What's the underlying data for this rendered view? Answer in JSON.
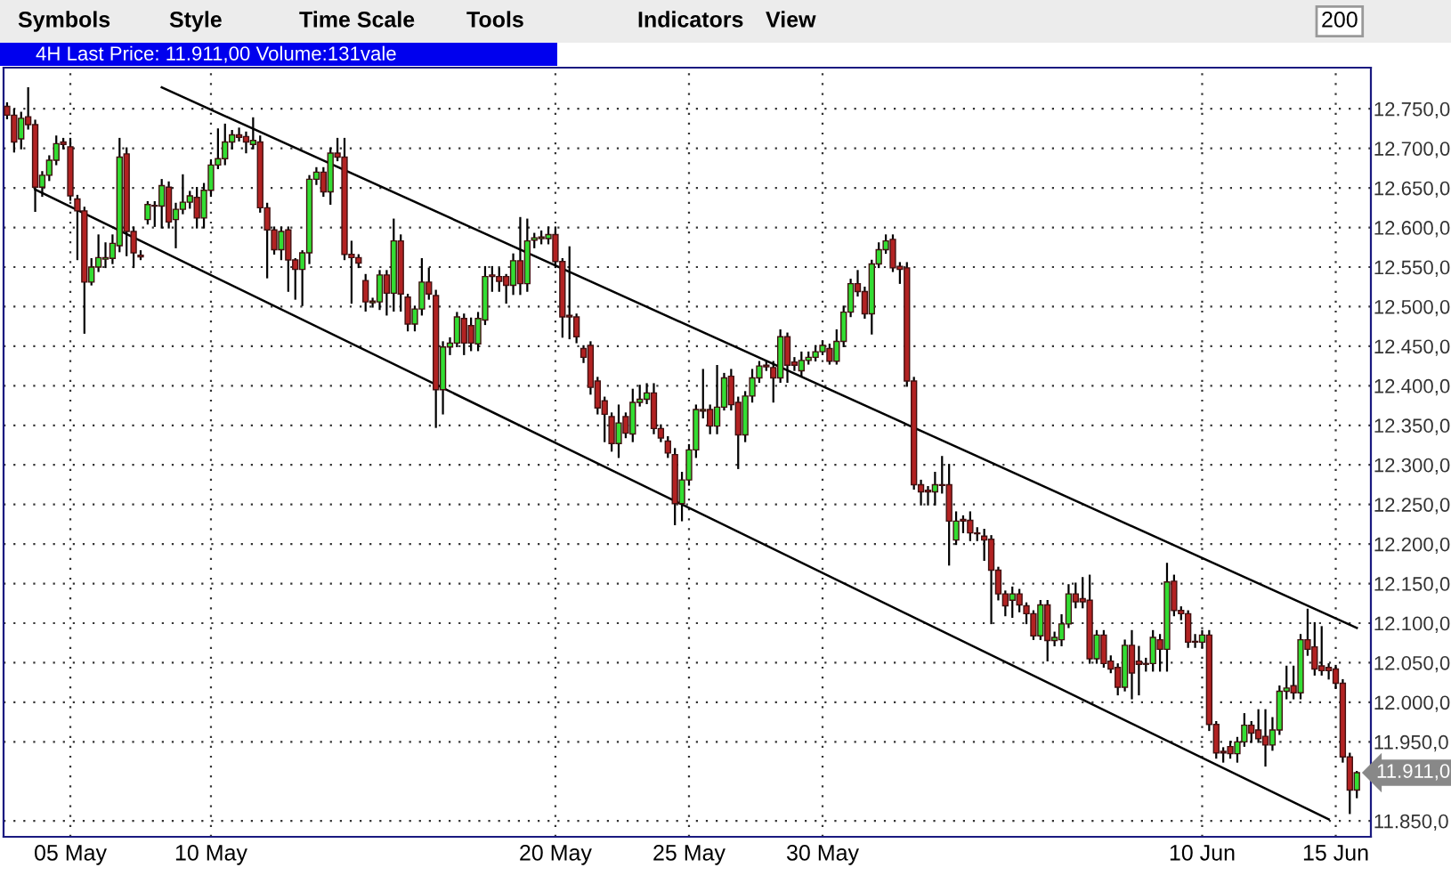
{
  "chart_data": {
    "type": "candlestick",
    "title": "4H Last Price: 11.911,00 Volume:131vale",
    "annotations": [
      "Symbols",
      "Style",
      "Time Scale",
      "Tools",
      "Indicators",
      "View",
      "200",
      "11.911,0"
    ],
    "categories": [
      null,
      null,
      null,
      null,
      null,
      null,
      null,
      null,
      null,
      "05 May",
      null,
      null,
      null,
      null,
      null,
      null,
      null,
      null,
      null,
      null,
      null,
      null,
      null,
      null,
      null,
      null,
      null,
      null,
      null,
      "10 May",
      null,
      null,
      null,
      null,
      null,
      null,
      null,
      null,
      null,
      null,
      null,
      null,
      null,
      null,
      null,
      null,
      null,
      null,
      null,
      null,
      null,
      null,
      null,
      null,
      null,
      null,
      null,
      null,
      null,
      null,
      null,
      null,
      null,
      null,
      null,
      null,
      null,
      null,
      null,
      null,
      null,
      null,
      null,
      null,
      null,
      null,
      null,
      null,
      "20 May",
      null,
      null,
      null,
      null,
      null,
      null,
      null,
      null,
      null,
      null,
      null,
      null,
      null,
      null,
      null,
      null,
      null,
      null,
      "25 May",
      null,
      null,
      null,
      null,
      null,
      null,
      null,
      null,
      null,
      null,
      null,
      null,
      null,
      null,
      null,
      null,
      null,
      null,
      "30 May",
      null,
      null,
      null,
      null,
      null,
      null,
      null,
      null,
      null,
      null,
      null,
      null,
      null,
      null,
      null,
      null,
      null,
      null,
      null,
      null,
      null,
      null,
      null,
      null,
      null,
      null,
      null,
      null,
      null,
      null,
      null,
      null,
      null,
      null,
      null,
      null,
      null,
      null,
      null,
      null,
      null,
      null,
      null,
      null,
      null,
      null,
      null,
      null,
      null,
      null,
      null,
      null,
      null,
      "10 Jun",
      null,
      null,
      null,
      null,
      null,
      null,
      null,
      null,
      null,
      null,
      null,
      null,
      null,
      null,
      null,
      null,
      null,
      null,
      "15 Jun",
      null,
      null,
      null
    ],
    "ohlc": [
      [
        12753,
        12757,
        12738,
        12742
      ],
      [
        12742,
        12749,
        12696,
        12708
      ],
      [
        12712,
        12745,
        12700,
        12738
      ],
      [
        12740,
        12776,
        12725,
        12730
      ],
      [
        12730,
        12735,
        12621,
        12651
      ],
      [
        12651,
        12670,
        12640,
        12666
      ],
      [
        12666,
        12690,
        12660,
        12685
      ],
      [
        12685,
        12715,
        12680,
        12706
      ],
      [
        12708,
        12712,
        12700,
        12705
      ],
      [
        12702,
        12712,
        12635,
        12640
      ],
      [
        12636,
        12640,
        12560,
        12621
      ],
      [
        12621,
        12625,
        12467,
        12531
      ],
      [
        12531,
        12560,
        12528,
        12550
      ],
      [
        12550,
        12590,
        12545,
        12562
      ],
      [
        12560,
        12580,
        12550,
        12562
      ],
      [
        12561,
        12590,
        12555,
        12580
      ],
      [
        12577,
        12712,
        12570,
        12689
      ],
      [
        12693,
        12700,
        12565,
        12595
      ],
      [
        12595,
        12600,
        12550,
        12568
      ],
      [
        12565,
        12570,
        12560,
        12563
      ],
      [
        12610,
        12632,
        12605,
        12629
      ],
      [
        12628,
        12632,
        12602,
        12627
      ],
      [
        12627,
        12660,
        12600,
        12653
      ],
      [
        12651,
        12657,
        12600,
        12607
      ],
      [
        12610,
        12630,
        12575,
        12623
      ],
      [
        12623,
        12666,
        12618,
        12632
      ],
      [
        12632,
        12645,
        12625,
        12640
      ],
      [
        12638,
        12650,
        12600,
        12612
      ],
      [
        12612,
        12655,
        12600,
        12647
      ],
      [
        12647,
        12685,
        12640,
        12679
      ],
      [
        12679,
        12724,
        12675,
        12687
      ],
      [
        12687,
        12730,
        12680,
        12708
      ],
      [
        12708,
        12722,
        12700,
        12717
      ],
      [
        12717,
        12725,
        12710,
        12714
      ],
      [
        12715,
        12720,
        12695,
        12708
      ],
      [
        12705,
        12738,
        12700,
        12710
      ],
      [
        12708,
        12715,
        12620,
        12625
      ],
      [
        12625,
        12630,
        12537,
        12597
      ],
      [
        12597,
        12600,
        12567,
        12572
      ],
      [
        12572,
        12600,
        12560,
        12595
      ],
      [
        12597,
        12600,
        12520,
        12559
      ],
      [
        12559,
        12560,
        12510,
        12547
      ],
      [
        12547,
        12570,
        12502,
        12568
      ],
      [
        12568,
        12665,
        12555,
        12661
      ],
      [
        12661,
        12675,
        12655,
        12670
      ],
      [
        12670,
        12675,
        12640,
        12645
      ],
      [
        12645,
        12700,
        12630,
        12694
      ],
      [
        12694,
        12712,
        12685,
        12689
      ],
      [
        12689,
        12712,
        12560,
        12566
      ],
      [
        12566,
        12582,
        12505,
        12562
      ],
      [
        12562,
        12565,
        12550,
        12555
      ],
      [
        12533,
        12540,
        12495,
        12506
      ],
      [
        12505,
        12510,
        12500,
        12507
      ],
      [
        12506,
        12545,
        12497,
        12540
      ],
      [
        12540,
        12545,
        12490,
        12517
      ],
      [
        12517,
        12610,
        12495,
        12583
      ],
      [
        12583,
        12590,
        12495,
        12516
      ],
      [
        12512,
        12515,
        12470,
        12478
      ],
      [
        12478,
        12500,
        12470,
        12497
      ],
      [
        12497,
        12560,
        12490,
        12531
      ],
      [
        12531,
        12548,
        12510,
        12516
      ],
      [
        12514,
        12520,
        12348,
        12395
      ],
      [
        12395,
        12455,
        12365,
        12449
      ],
      [
        12449,
        12460,
        12440,
        12454
      ],
      [
        12454,
        12492,
        12450,
        12487
      ],
      [
        12485,
        12490,
        12440,
        12454
      ],
      [
        12476,
        12485,
        12445,
        12454
      ],
      [
        12453,
        12492,
        12445,
        12485
      ],
      [
        12483,
        12550,
        12478,
        12538
      ],
      [
        12540,
        12550,
        12520,
        12538
      ],
      [
        12538,
        12548,
        12520,
        12532
      ],
      [
        12538,
        12540,
        12505,
        12527
      ],
      [
        12527,
        12566,
        12516,
        12558
      ],
      [
        12558,
        12612,
        12516,
        12529
      ],
      [
        12529,
        12610,
        12520,
        12583
      ],
      [
        12584,
        12592,
        12575,
        12587
      ],
      [
        12586,
        12595,
        12580,
        12588
      ],
      [
        12586,
        12600,
        12580,
        12591
      ],
      [
        12591,
        12600,
        12550,
        12557
      ],
      [
        12557,
        12560,
        12462,
        12487
      ],
      [
        12489,
        12575,
        12460,
        12487
      ],
      [
        12487,
        12490,
        12455,
        12462
      ],
      [
        12447,
        12450,
        12430,
        12436
      ],
      [
        12451,
        12455,
        12390,
        12398
      ],
      [
        12406,
        12410,
        12365,
        12372
      ],
      [
        12381,
        12385,
        12330,
        12364
      ],
      [
        12361,
        12365,
        12318,
        12327
      ],
      [
        12327,
        12375,
        12310,
        12353
      ],
      [
        12361,
        12365,
        12335,
        12340
      ],
      [
        12339,
        12395,
        12330,
        12379
      ],
      [
        12379,
        12400,
        12375,
        12383
      ],
      [
        12383,
        12402,
        12378,
        12391
      ],
      [
        12391,
        12402,
        12340,
        12346
      ],
      [
        12346,
        12350,
        12330,
        12334
      ],
      [
        12330,
        12335,
        12310,
        12315
      ],
      [
        12313,
        12320,
        12225,
        12251
      ],
      [
        12251,
        12290,
        12230,
        12281
      ],
      [
        12281,
        12325,
        12275,
        12319
      ],
      [
        12319,
        12375,
        12310,
        12370
      ],
      [
        12368,
        12420,
        12360,
        12370
      ],
      [
        12370,
        12375,
        12340,
        12349
      ],
      [
        12349,
        12425,
        12340,
        12373
      ],
      [
        12373,
        12415,
        12370,
        12410
      ],
      [
        12412,
        12420,
        12370,
        12376
      ],
      [
        12379,
        12385,
        12296,
        12338
      ],
      [
        12338,
        12392,
        12330,
        12387
      ],
      [
        12387,
        12420,
        12380,
        12410
      ],
      [
        12410,
        12430,
        12405,
        12425
      ],
      [
        12426,
        12430,
        12420,
        12424
      ],
      [
        12423,
        12430,
        12380,
        12410
      ],
      [
        12410,
        12470,
        12405,
        12462
      ],
      [
        12462,
        12466,
        12405,
        12426
      ],
      [
        12430,
        12435,
        12420,
        12426
      ],
      [
        12419,
        12442,
        12412,
        12432
      ],
      [
        12432,
        12442,
        12428,
        12436
      ],
      [
        12436,
        12450,
        12432,
        12443
      ],
      [
        12443,
        12456,
        12440,
        12451
      ],
      [
        12447,
        12452,
        12428,
        12431
      ],
      [
        12431,
        12470,
        12428,
        12456
      ],
      [
        12456,
        12500,
        12450,
        12493
      ],
      [
        12493,
        12534,
        12488,
        12529
      ],
      [
        12529,
        12545,
        12514,
        12519
      ],
      [
        12519,
        12524,
        12486,
        12491
      ],
      [
        12491,
        12558,
        12466,
        12554
      ],
      [
        12554,
        12580,
        12550,
        12572
      ],
      [
        12572,
        12590,
        12568,
        12583
      ],
      [
        12585,
        12590,
        12545,
        12549
      ],
      [
        12551,
        12555,
        12530,
        12547
      ],
      [
        12549,
        12555,
        12400,
        12406
      ],
      [
        12406,
        12410,
        12270,
        12275
      ],
      [
        12275,
        12280,
        12250,
        12266
      ],
      [
        12268,
        12272,
        12250,
        12266
      ],
      [
        12266,
        12290,
        12250,
        12275
      ],
      [
        12274,
        12310,
        12265,
        12275
      ],
      [
        12275,
        12300,
        12174,
        12229
      ],
      [
        12205,
        12240,
        12200,
        12229
      ],
      [
        12231,
        12235,
        12215,
        12229
      ],
      [
        12230,
        12240,
        12205,
        12214
      ],
      [
        12214,
        12220,
        12205,
        12213
      ],
      [
        12210,
        12218,
        12180,
        12205
      ],
      [
        12206,
        12210,
        12100,
        12167
      ],
      [
        12167,
        12170,
        12130,
        12137
      ],
      [
        12137,
        12140,
        12110,
        12122
      ],
      [
        12129,
        12145,
        12108,
        12137
      ],
      [
        12137,
        12142,
        12115,
        12123
      ],
      [
        12122,
        12125,
        12100,
        12112
      ],
      [
        12112,
        12115,
        12080,
        12084
      ],
      [
        12084,
        12128,
        12080,
        12123
      ],
      [
        12123,
        12128,
        12053,
        12078
      ],
      [
        12078,
        12088,
        12072,
        12082
      ],
      [
        12079,
        12110,
        12072,
        12099
      ],
      [
        12099,
        12148,
        12095,
        12137
      ],
      [
        12137,
        12150,
        12120,
        12127
      ],
      [
        12131,
        12157,
        12120,
        12127
      ],
      [
        12129,
        12160,
        12050,
        12055
      ],
      [
        12055,
        12090,
        12050,
        12085
      ],
      [
        12085,
        12090,
        12045,
        12049
      ],
      [
        12052,
        12058,
        12038,
        12042
      ],
      [
        12044,
        12048,
        12010,
        12019
      ],
      [
        12019,
        12078,
        12015,
        12072
      ],
      [
        12072,
        12090,
        12005,
        12037
      ],
      [
        12052,
        12070,
        12010,
        12048
      ],
      [
        12048,
        12055,
        12040,
        12049
      ],
      [
        12049,
        12090,
        12040,
        12082
      ],
      [
        12079,
        12085,
        12040,
        12067
      ],
      [
        12067,
        12175,
        12040,
        12152
      ],
      [
        12153,
        12160,
        12110,
        12116
      ],
      [
        12116,
        12120,
        12105,
        12112
      ],
      [
        12112,
        12115,
        12070,
        12076
      ],
      [
        12077,
        12085,
        12070,
        12076
      ],
      [
        12076,
        12090,
        12070,
        12085
      ],
      [
        12085,
        12090,
        11965,
        11972
      ],
      [
        11972,
        11975,
        11930,
        11936
      ],
      [
        11938,
        11942,
        11925,
        11936
      ],
      [
        11944,
        11950,
        11930,
        11935
      ],
      [
        11935,
        11955,
        11925,
        11950
      ],
      [
        11950,
        11985,
        11945,
        11971
      ],
      [
        11971,
        11975,
        11950,
        11961
      ],
      [
        11965,
        11990,
        11950,
        11954
      ],
      [
        11957,
        11990,
        11920,
        11946
      ],
      [
        11946,
        11980,
        11940,
        11965
      ],
      [
        11965,
        12020,
        11960,
        12014
      ],
      [
        12014,
        12045,
        12005,
        12018
      ],
      [
        12021,
        12045,
        12005,
        12012
      ],
      [
        12012,
        12085,
        12005,
        12079
      ],
      [
        12079,
        12117,
        12060,
        12067
      ],
      [
        12070,
        12100,
        12035,
        12042
      ],
      [
        12046,
        12095,
        12035,
        12040
      ],
      [
        12044,
        12048,
        12030,
        12040
      ],
      [
        12042,
        12046,
        12018,
        12024
      ],
      [
        12024,
        12028,
        11925,
        11931
      ],
      [
        11931,
        11935,
        11860,
        11889
      ],
      [
        11889,
        11912,
        11880,
        11911
      ]
    ],
    "colors": [
      "#b22222",
      "#b22222",
      "#33dd33",
      "#b22222",
      "#b22222",
      "#33dd33",
      "#33dd33",
      "#33dd33",
      "#b22222",
      "#b22222",
      "#b22222",
      "#b22222",
      "#33dd33",
      "#33dd33",
      "#33dd33",
      "#33dd33",
      "#33dd33",
      "#b22222",
      "#b22222",
      "#b22222",
      "#33dd33",
      "#b22222",
      "#33dd33",
      "#b22222",
      "#33dd33",
      "#33dd33",
      "#33dd33",
      "#b22222",
      "#33dd33",
      "#33dd33",
      "#33dd33",
      "#33dd33",
      "#33dd33",
      "#b22222",
      "#b22222",
      "#33dd33",
      "#b22222",
      "#b22222",
      "#b22222",
      "#33dd33",
      "#b22222",
      "#b22222",
      "#33dd33",
      "#33dd33",
      "#33dd33",
      "#b22222",
      "#33dd33",
      "#b22222",
      "#b22222",
      "#b22222",
      "#b22222",
      "#b22222",
      "#33dd33",
      "#33dd33",
      "#b22222",
      "#33dd33",
      "#b22222",
      "#b22222",
      "#33dd33",
      "#33dd33",
      "#b22222",
      "#b22222",
      "#33dd33",
      "#33dd33",
      "#33dd33",
      "#b22222",
      "#b22222",
      "#33dd33",
      "#33dd33",
      "#b22222",
      "#b22222",
      "#b22222",
      "#33dd33",
      "#b22222",
      "#33dd33",
      "#33dd33",
      "#33dd33",
      "#33dd33",
      "#b22222",
      "#b22222",
      "#b22222",
      "#b22222",
      "#b22222",
      "#b22222",
      "#b22222",
      "#b22222",
      "#b22222",
      "#33dd33",
      "#b22222",
      "#33dd33",
      "#33dd33",
      "#33dd33",
      "#b22222",
      "#b22222",
      "#b22222",
      "#b22222",
      "#33dd33",
      "#33dd33",
      "#33dd33",
      "#33dd33",
      "#b22222",
      "#33dd33",
      "#33dd33",
      "#b22222",
      "#b22222",
      "#33dd33",
      "#33dd33",
      "#33dd33",
      "#b22222",
      "#b22222",
      "#33dd33",
      "#b22222",
      "#b22222",
      "#33dd33",
      "#33dd33",
      "#33dd33",
      "#33dd33",
      "#b22222",
      "#33dd33",
      "#33dd33",
      "#33dd33",
      "#b22222",
      "#b22222",
      "#33dd33",
      "#33dd33",
      "#33dd33",
      "#b22222",
      "#b22222",
      "#b22222",
      "#b22222",
      "#b22222",
      "#b22222",
      "#33dd33",
      "#33dd33",
      "#b22222",
      "#33dd33",
      "#b22222",
      "#b22222",
      "#b22222",
      "#b22222",
      "#b22222",
      "#b22222",
      "#b22222",
      "#33dd33",
      "#b22222",
      "#b22222",
      "#b22222",
      "#33dd33",
      "#b22222",
      "#33dd33",
      "#33dd33",
      "#33dd33",
      "#b22222",
      "#b22222",
      "#b22222",
      "#33dd33",
      "#b22222",
      "#b22222",
      "#b22222",
      "#33dd33",
      "#b22222",
      "#b22222",
      "#33dd33",
      "#33dd33",
      "#b22222",
      "#33dd33",
      "#b22222",
      "#b22222",
      "#b22222",
      "#b22222",
      "#33dd33",
      "#b22222",
      "#b22222",
      "#b22222",
      "#b22222",
      "#33dd33",
      "#33dd33",
      "#b22222",
      "#b22222",
      "#b22222",
      "#33dd33",
      "#33dd33",
      "#33dd33",
      "#b22222",
      "#33dd33",
      "#b22222",
      "#b22222",
      "#b22222",
      "#b22222",
      "#b22222",
      "#b22222",
      "#b22222",
      "#33dd33"
    ],
    "series": [
      {
        "type": "line",
        "color": "#000000",
        "values": [
          null,
          null,
          null,
          null,
          null,
          null,
          null,
          null,
          null,
          null,
          null,
          null,
          null,
          null,
          null,
          null,
          null,
          null,
          null,
          null,
          null,
          null,
          12777,
          null,
          null,
          null,
          null,
          null,
          null,
          null,
          null,
          null,
          null,
          null,
          null,
          null,
          null,
          null,
          null,
          null,
          null,
          null,
          null,
          null,
          null,
          null,
          null,
          null,
          null,
          null,
          null,
          null,
          null,
          null,
          null,
          null,
          null,
          null,
          null,
          null,
          null,
          null,
          null,
          null,
          null,
          null,
          null,
          null,
          null,
          null,
          null,
          null,
          null,
          null,
          null,
          null,
          null,
          null,
          null,
          null,
          null,
          null,
          null,
          null,
          null,
          null,
          null,
          null,
          null,
          null,
          null,
          null,
          null,
          null,
          null,
          null,
          null,
          null,
          null,
          null,
          null,
          null,
          null,
          null,
          null,
          null,
          null,
          null,
          null,
          null,
          null,
          null,
          null,
          null,
          null,
          null,
          null,
          null,
          null,
          null,
          null,
          null,
          null,
          null,
          null,
          null,
          null,
          null,
          null,
          null,
          null,
          null,
          null,
          null,
          null,
          null,
          null,
          null,
          null,
          null,
          null,
          null,
          null,
          null,
          null,
          null,
          null,
          null,
          null,
          null,
          null,
          null,
          null,
          null,
          null,
          null,
          null,
          null,
          null,
          null,
          null,
          null,
          null,
          null,
          null,
          null,
          null,
          null,
          null,
          null,
          null,
          null,
          null,
          null,
          null,
          null,
          null,
          null,
          null,
          null,
          null,
          null,
          null,
          null,
          null,
          null,
          null,
          null,
          null,
          null,
          null,
          null,
          12094
        ]
      },
      {
        "type": "line",
        "color": "#000000",
        "values": [
          null,
          null,
          null,
          null,
          12648,
          null,
          null,
          null,
          null,
          null,
          null,
          null,
          null,
          null,
          null,
          null,
          null,
          null,
          null,
          null,
          null,
          null,
          null,
          null,
          null,
          null,
          null,
          null,
          null,
          null,
          null,
          null,
          null,
          null,
          null,
          null,
          null,
          null,
          null,
          null,
          null,
          null,
          null,
          null,
          null,
          null,
          null,
          null,
          null,
          null,
          null,
          null,
          null,
          null,
          null,
          null,
          null,
          null,
          null,
          null,
          null,
          null,
          null,
          null,
          null,
          null,
          null,
          null,
          null,
          null,
          null,
          null,
          null,
          null,
          null,
          null,
          null,
          null,
          null,
          null,
          null,
          null,
          null,
          null,
          null,
          null,
          null,
          null,
          null,
          null,
          null,
          null,
          null,
          null,
          null,
          null,
          null,
          null,
          null,
          null,
          null,
          null,
          null,
          null,
          null,
          null,
          null,
          null,
          null,
          null,
          null,
          null,
          null,
          null,
          null,
          null,
          null,
          null,
          null,
          null,
          null,
          null,
          null,
          null,
          null,
          null,
          null,
          null,
          null,
          null,
          null,
          null,
          null,
          null,
          null,
          null,
          null,
          null,
          null,
          null,
          null,
          null,
          null,
          null,
          null,
          null,
          null,
          null,
          null,
          null,
          null,
          null,
          null,
          null,
          null,
          null,
          null,
          null,
          null,
          null,
          null,
          null,
          null,
          null,
          null,
          null,
          null,
          null,
          null,
          null,
          null,
          null,
          null,
          null,
          null,
          null,
          null,
          null,
          null,
          null,
          null,
          null,
          null,
          null,
          null,
          null,
          null,
          null,
          11852,
          null,
          null,
          null,
          null
        ]
      }
    ],
    "ylim": [
      11830,
      12802
    ],
    "yticks": [
      {
        "value": 11850,
        "label": "11.850,0"
      },
      {
        "value": 11950,
        "label": "11.950,0"
      },
      {
        "value": 12000,
        "label": "12.000,0"
      },
      {
        "value": 12050,
        "label": "12.050,0"
      },
      {
        "value": 12100,
        "label": "12.100,0"
      },
      {
        "value": 12150,
        "label": "12.150,0"
      },
      {
        "value": 12200,
        "label": "12.200,0"
      },
      {
        "value": 12250,
        "label": "12.250,0"
      },
      {
        "value": 12300,
        "label": "12.300,0"
      },
      {
        "value": 12350,
        "label": "12.350,0"
      },
      {
        "value": 12400,
        "label": "12.400,0"
      },
      {
        "value": 12450,
        "label": "12.450,0"
      },
      {
        "value": 12500,
        "label": "12.500,0"
      },
      {
        "value": 12550,
        "label": "12.550,0"
      },
      {
        "value": 12600,
        "label": "12.600,0"
      },
      {
        "value": 12650,
        "label": "12.650,0"
      },
      {
        "value": 12700,
        "label": "12.700,0"
      },
      {
        "value": 12750,
        "label": "12.750,0"
      }
    ],
    "grid": true
  }
}
